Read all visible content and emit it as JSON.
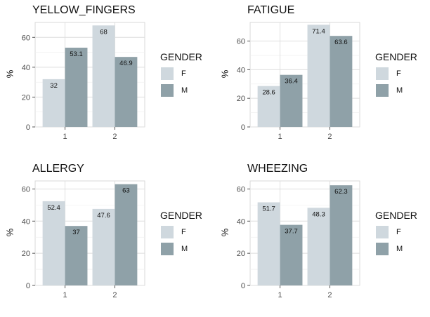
{
  "fill_colors": {
    "F": "#cfd8de",
    "M": "#8fa1a8"
  },
  "legend": {
    "title": "GENDER",
    "items": [
      "F",
      "M"
    ]
  },
  "chart_data": [
    {
      "type": "bar",
      "title": "YELLOW_FINGERS",
      "ylabel": "%",
      "categories": [
        "1",
        "2"
      ],
      "ylim": [
        0,
        70
      ],
      "yticks": [
        0,
        20,
        40,
        60
      ],
      "legend_position": "right",
      "series": [
        {
          "name": "F",
          "values": [
            32,
            68
          ]
        },
        {
          "name": "M",
          "values": [
            53.1,
            46.9
          ]
        }
      ]
    },
    {
      "type": "bar",
      "title": "FATIGUE",
      "ylabel": "%",
      "categories": [
        "1",
        "2"
      ],
      "ylim": [
        0,
        73
      ],
      "yticks": [
        0,
        20,
        40,
        60
      ],
      "legend_position": "right",
      "series": [
        {
          "name": "F",
          "values": [
            28.6,
            71.4
          ]
        },
        {
          "name": "M",
          "values": [
            36.4,
            63.6
          ]
        }
      ]
    },
    {
      "type": "bar",
      "title": "ALLERGY",
      "ylabel": "%",
      "categories": [
        "1",
        "2"
      ],
      "ylim": [
        0,
        65
      ],
      "yticks": [
        0,
        20,
        40,
        60
      ],
      "legend_position": "right",
      "series": [
        {
          "name": "F",
          "values": [
            52.4,
            47.6
          ]
        },
        {
          "name": "M",
          "values": [
            37,
            63
          ]
        }
      ]
    },
    {
      "type": "bar",
      "title": "WHEEZING",
      "ylabel": "%",
      "categories": [
        "1",
        "2"
      ],
      "ylim": [
        0,
        65
      ],
      "yticks": [
        0,
        20,
        40,
        60
      ],
      "legend_position": "right",
      "series": [
        {
          "name": "F",
          "values": [
            51.7,
            48.3
          ]
        },
        {
          "name": "M",
          "values": [
            37.7,
            62.3
          ]
        }
      ]
    }
  ]
}
